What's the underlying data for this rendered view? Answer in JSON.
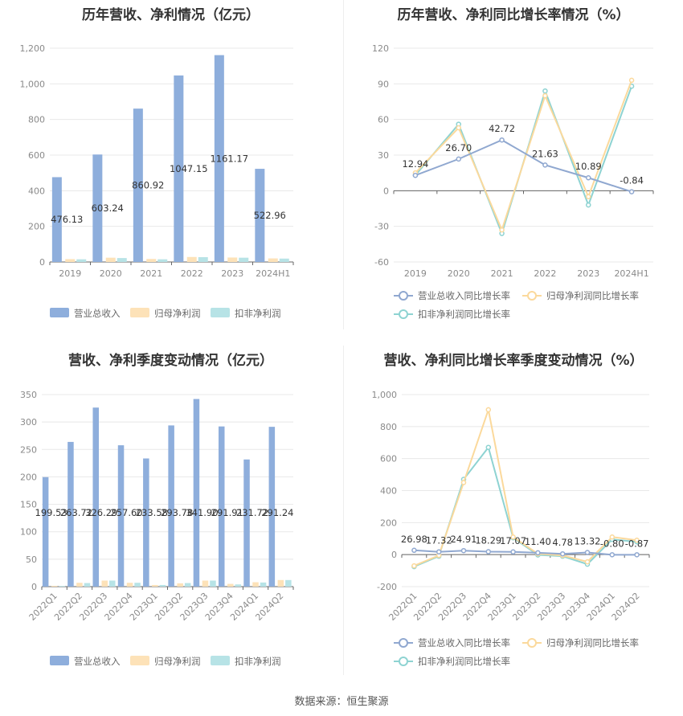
{
  "footer": {
    "source": "数据来源：恒生聚源"
  },
  "colors": {
    "revenue": "#8eaedc",
    "parent": "#fde2b8",
    "deducted": "#b7e3e6",
    "revenue_line": "#90a8d0",
    "parent_line": "#fbd99c",
    "deducted_line": "#8ed3d2"
  },
  "chart_data": [
    {
      "type": "bar",
      "title": "历年营收、净利情况（亿元）",
      "categories": [
        "2019",
        "2020",
        "2021",
        "2022",
        "2023",
        "2024H1"
      ],
      "ylim": [
        0,
        1200
      ],
      "yticks": [
        0,
        200,
        400,
        600,
        800,
        1000,
        1200
      ],
      "ytick_labels": [
        "0",
        "200",
        "400",
        "600",
        "800",
        "1,000",
        "1,200"
      ],
      "grid": true,
      "legend": "bottom",
      "series": [
        {
          "name": "营业总收入",
          "color": "#8eaedc",
          "values": [
            476.13,
            603.24,
            860.92,
            1047.15,
            1161.17,
            522.96
          ],
          "labels": [
            "476.13",
            "603.24",
            "860.92",
            "1047.15",
            "1161.17",
            "522.96"
          ]
        },
        {
          "name": "归母净利润",
          "color": "#fde2b8",
          "values": [
            16,
            24,
            17,
            28,
            25,
            20
          ]
        },
        {
          "name": "扣非净利润",
          "color": "#b7e3e6",
          "values": [
            15,
            22,
            15,
            27,
            24,
            19
          ]
        }
      ]
    },
    {
      "type": "line",
      "title": "历年营收、净利同比增长率情况（%）",
      "categories": [
        "2019",
        "2020",
        "2021",
        "2022",
        "2023",
        "2024H1"
      ],
      "ylim": [
        -60,
        120
      ],
      "yticks": [
        -60,
        -30,
        0,
        30,
        60,
        90,
        120
      ],
      "ytick_labels": [
        "-60",
        "-30",
        "0",
        "30",
        "60",
        "90",
        "120"
      ],
      "grid": true,
      "legend": "bottom",
      "series": [
        {
          "name": "营业总收入同比增长率",
          "color": "#90a8d0",
          "values": [
            12.94,
            26.7,
            42.72,
            21.63,
            10.89,
            -0.84
          ],
          "labels": [
            "12.94",
            "26.70",
            "42.72",
            "21.63",
            "10.89",
            "-0.84"
          ]
        },
        {
          "name": "归母净利润同比增长率",
          "color": "#fbd99c",
          "values": [
            15,
            53,
            -33,
            80,
            -5,
            93
          ]
        },
        {
          "name": "扣非净利润同比增长率",
          "color": "#8ed3d2",
          "values": [
            13,
            56,
            -36,
            84,
            -12,
            88
          ]
        }
      ]
    },
    {
      "type": "bar",
      "title": "营收、净利季度变动情况（亿元）",
      "categories": [
        "2022Q1",
        "2022Q2",
        "2022Q3",
        "2022Q4",
        "2023Q1",
        "2023Q2",
        "2023Q3",
        "2023Q4",
        "2024Q1",
        "2024Q2"
      ],
      "ylim": [
        0,
        350
      ],
      "yticks": [
        0,
        50,
        100,
        150,
        200,
        250,
        300,
        350
      ],
      "ytick_labels": [
        "0",
        "50",
        "100",
        "150",
        "200",
        "250",
        "300",
        "350"
      ],
      "grid": true,
      "legend": "bottom",
      "series": [
        {
          "name": "营业总收入",
          "color": "#8eaedc",
          "values": [
            199.53,
            263.72,
            326.29,
            257.6,
            233.58,
            293.78,
            341.9,
            291.91,
            231.72,
            291.24
          ],
          "labels": [
            "199.53",
            "263.72",
            "326.29",
            "257.60",
            "233.58",
            "293.78",
            "341.90",
            "291.91",
            "231.72",
            "291.24"
          ]
        },
        {
          "name": "归母净利润",
          "color": "#fde2b8",
          "values": [
            1.5,
            7,
            11,
            7,
            3,
            6,
            11,
            5,
            8,
            12
          ]
        },
        {
          "name": "扣非净利润",
          "color": "#b7e3e6",
          "values": [
            1.2,
            6.5,
            11,
            7,
            3,
            6.5,
            11,
            4,
            7.5,
            12
          ]
        }
      ]
    },
    {
      "type": "line",
      "title": "营收、净利同比增长率季度变动情况（%）",
      "categories": [
        "2022Q1",
        "2022Q2",
        "2022Q3",
        "2022Q4",
        "2023Q1",
        "2023Q2",
        "2023Q3",
        "2023Q4",
        "2024Q1",
        "2024Q2"
      ],
      "ylim": [
        -200,
        1000
      ],
      "yticks": [
        -200,
        0,
        200,
        400,
        600,
        800,
        1000
      ],
      "ytick_labels": [
        "-200",
        "0",
        "200",
        "400",
        "600",
        "800",
        "1,000"
      ],
      "grid": true,
      "legend": "bottom",
      "series": [
        {
          "name": "营业总收入同比增长率",
          "color": "#90a8d0",
          "values": [
            26.98,
            17.32,
            24.91,
            18.29,
            17.07,
            11.4,
            4.78,
            13.32,
            -0.8,
            -0.87
          ],
          "labels": [
            "26.98",
            "17.32",
            "24.91",
            "18.29",
            "17.07",
            "11.40",
            "4.78",
            "13.32",
            "-0.80",
            "-0.87"
          ]
        },
        {
          "name": "归母净利润同比增长率",
          "color": "#fbd99c",
          "values": [
            -70,
            -5,
            450,
            905,
            110,
            5,
            -5,
            -45,
            110,
            90
          ]
        },
        {
          "name": "扣非净利润同比增长率",
          "color": "#8ed3d2",
          "values": [
            -75,
            -10,
            470,
            670,
            105,
            -2,
            -10,
            -60,
            95,
            80
          ]
        }
      ]
    }
  ]
}
